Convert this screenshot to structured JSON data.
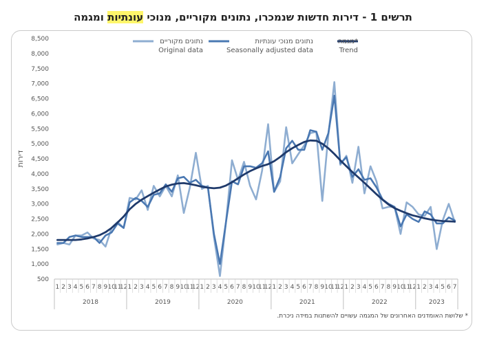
{
  "title": {
    "before": "תרשים 1 - דירות חדשות שנמכרו, נתונים מקוריים, מנוכי ",
    "highlight": "עונתיות",
    "after": " ומגמה"
  },
  "footnote": "* שלושת האומדנים האחרונים של המגמה עשויים להשתנות במידה ניכרת.",
  "colors": {
    "original": "#8eadd1",
    "seasonal": "#4a78b2",
    "trend": "#1f3a6b",
    "highlight": "#fff66b"
  },
  "chart_data": {
    "type": "line",
    "ylabel": "דירות",
    "ylim": [
      500,
      8500
    ],
    "yticks": [
      500,
      1000,
      1500,
      2000,
      2500,
      3000,
      3500,
      4000,
      4500,
      5000,
      5500,
      6000,
      6500,
      7000,
      7500,
      8000,
      8500
    ],
    "ytick_labels": [
      "500",
      "1,000",
      "1,500",
      "2,000",
      "2,500",
      "3,000",
      "3,500",
      "4,000",
      "4,500",
      "5,000",
      "5,500",
      "6,000",
      "6,500",
      "7,000",
      "7,500",
      "8,000",
      "8,500"
    ],
    "grid": false,
    "legend_position": "top",
    "months": [
      "1",
      "2",
      "3",
      "4",
      "5",
      "6",
      "7",
      "8",
      "9",
      "10",
      "11",
      "12",
      "1",
      "2",
      "3",
      "4",
      "5",
      "6",
      "7",
      "8",
      "9",
      "10",
      "11",
      "12",
      "1",
      "2",
      "3",
      "4",
      "5",
      "6",
      "7",
      "8",
      "9",
      "10",
      "11",
      "12",
      "1",
      "2",
      "3",
      "4",
      "5",
      "6",
      "7",
      "8",
      "9",
      "10",
      "11",
      "12",
      "1",
      "2",
      "3",
      "4",
      "5",
      "6",
      "7",
      "8",
      "9",
      "10",
      "11",
      "12",
      "1",
      "2",
      "3",
      "4",
      "5",
      "6",
      "7"
    ],
    "years": [
      {
        "label": "2018",
        "count": 12
      },
      {
        "label": "2019",
        "count": 12
      },
      {
        "label": "2020",
        "count": 12
      },
      {
        "label": "2021",
        "count": 12
      },
      {
        "label": "2022",
        "count": 12
      },
      {
        "label": "2023",
        "count": 7
      }
    ],
    "series": [
      {
        "key": "original",
        "name_he": "נתונים מקוריים",
        "name_en": "Original data",
        "values": [
          1650,
          1700,
          1650,
          1950,
          1950,
          2050,
          1850,
          1800,
          1580,
          2200,
          2400,
          2200,
          3200,
          3150,
          3450,
          2800,
          3600,
          3250,
          3600,
          3250,
          3950,
          2700,
          3550,
          4700,
          3500,
          3600,
          1900,
          600,
          2400,
          4450,
          3800,
          4400,
          3600,
          3150,
          4100,
          5650,
          3400,
          3750,
          5550,
          4350,
          4650,
          4950,
          5350,
          5400,
          3100,
          5300,
          7050,
          4300,
          4600,
          3700,
          4900,
          3350,
          4250,
          3750,
          2850,
          2900,
          2900,
          2000,
          3050,
          2900,
          2650,
          2600,
          2900,
          1500,
          2450,
          3000,
          2400
        ]
      },
      {
        "key": "seasonal",
        "name_he": "נתונים מנוכי עונתיות",
        "name_en": "Seasonally adjusted data",
        "values": [
          1700,
          1700,
          1900,
          1950,
          1900,
          1900,
          1900,
          1700,
          1950,
          2050,
          2350,
          2200,
          3050,
          3200,
          3100,
          2900,
          3300,
          3350,
          3650,
          3400,
          3850,
          3900,
          3700,
          3800,
          3600,
          3550,
          2000,
          1000,
          2400,
          3750,
          3650,
          4250,
          4250,
          4200,
          4350,
          4750,
          3400,
          3900,
          4850,
          5100,
          4800,
          4800,
          5450,
          5400,
          4800,
          5350,
          6600,
          4350,
          4550,
          3900,
          4150,
          3800,
          3850,
          3550,
          3150,
          3000,
          2900,
          2250,
          2650,
          2500,
          2400,
          2750,
          2650,
          2350,
          2350,
          2550,
          2450
        ]
      },
      {
        "key": "trend",
        "name_he": "מגמה*",
        "name_en": "Trend",
        "values": [
          1800,
          1800,
          1800,
          1800,
          1820,
          1850,
          1900,
          1960,
          2060,
          2200,
          2380,
          2580,
          2820,
          3000,
          3140,
          3260,
          3370,
          3480,
          3580,
          3640,
          3680,
          3690,
          3660,
          3620,
          3570,
          3540,
          3520,
          3540,
          3610,
          3720,
          3850,
          3980,
          4090,
          4180,
          4260,
          4320,
          4420,
          4560,
          4720,
          4850,
          4960,
          5060,
          5110,
          5100,
          5000,
          4850,
          4660,
          4450,
          4250,
          4060,
          3880,
          3700,
          3510,
          3320,
          3140,
          2980,
          2860,
          2770,
          2690,
          2620,
          2570,
          2520,
          2480,
          2450,
          2430,
          2420,
          2410
        ]
      }
    ]
  }
}
